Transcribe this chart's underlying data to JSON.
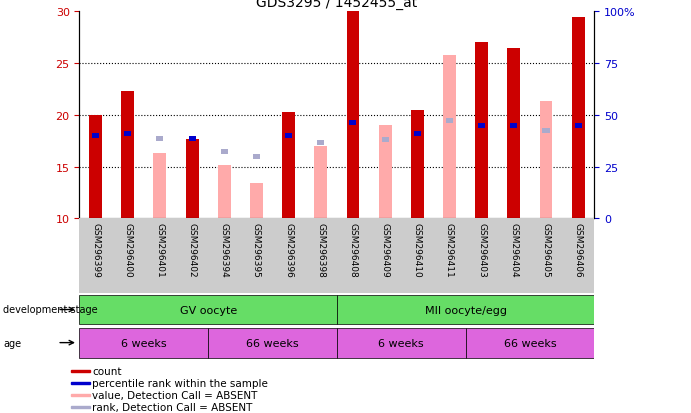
{
  "title": "GDS3295 / 1452455_at",
  "samples": [
    "GSM296399",
    "GSM296400",
    "GSM296401",
    "GSM296402",
    "GSM296394",
    "GSM296395",
    "GSM296396",
    "GSM296398",
    "GSM296408",
    "GSM296409",
    "GSM296410",
    "GSM296411",
    "GSM296403",
    "GSM296404",
    "GSM296405",
    "GSM296406"
  ],
  "red_bars": [
    20.0,
    22.3,
    null,
    17.7,
    null,
    null,
    20.3,
    null,
    30.0,
    null,
    20.5,
    null,
    27.0,
    26.5,
    null,
    29.5
  ],
  "pink_bars": [
    null,
    null,
    16.3,
    null,
    15.2,
    13.4,
    null,
    17.0,
    null,
    19.0,
    null,
    25.8,
    null,
    null,
    21.3,
    null
  ],
  "blue_squares": [
    18.0,
    18.2,
    null,
    17.7,
    null,
    null,
    18.0,
    null,
    19.3,
    null,
    18.2,
    null,
    19.0,
    19.0,
    null,
    19.0
  ],
  "lavender_squares": [
    null,
    null,
    17.7,
    null,
    16.5,
    16.0,
    null,
    17.3,
    null,
    17.6,
    null,
    19.5,
    null,
    null,
    18.5,
    null
  ],
  "ylim_left": [
    10,
    30
  ],
  "ylim_right": [
    0,
    100
  ],
  "yticks_left": [
    10,
    15,
    20,
    25,
    30
  ],
  "yticks_right": [
    0,
    25,
    50,
    75,
    100
  ],
  "ytick_labels_right": [
    "0",
    "25",
    "50",
    "75",
    "100%"
  ],
  "background_color": "#ffffff",
  "plot_bg_color": "#ffffff",
  "bar_width": 0.4,
  "red_color": "#cc0000",
  "pink_color": "#ffaaaa",
  "blue_color": "#0000cc",
  "lavender_color": "#aaaacc",
  "tick_label_color_left": "#cc0000",
  "tick_label_color_right": "#0000cc",
  "xlabel_area_color": "#cccccc",
  "dev_stage_color": "#66dd66",
  "age_color": "#dd66dd",
  "legend_items": [
    {
      "label": "count",
      "color": "#cc0000"
    },
    {
      "label": "percentile rank within the sample",
      "color": "#0000cc"
    },
    {
      "label": "value, Detection Call = ABSENT",
      "color": "#ffaaaa"
    },
    {
      "label": "rank, Detection Call = ABSENT",
      "color": "#aaaacc"
    }
  ]
}
